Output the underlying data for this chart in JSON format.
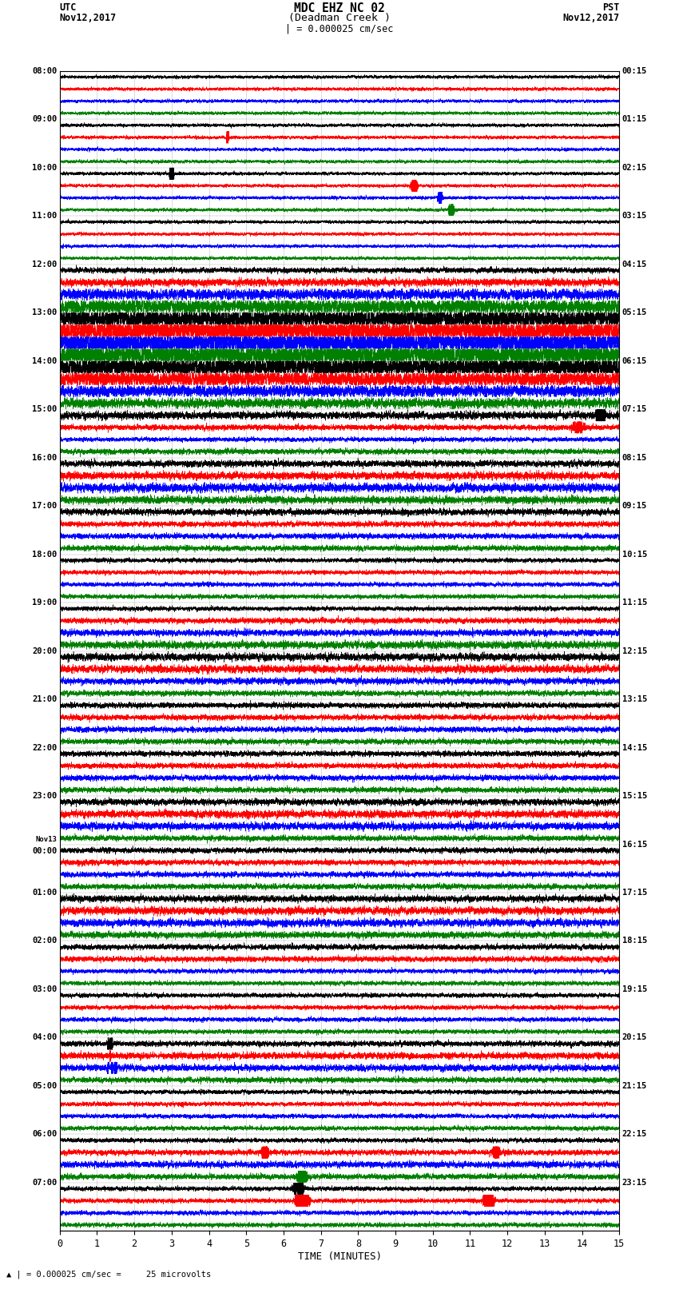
{
  "title_line1": "MDC EHZ NC 02",
  "title_line2": "(Deadman Creek )",
  "scale_label": "| = 0.000025 cm/sec",
  "left_label_top": "UTC",
  "left_label_date": "Nov12,2017",
  "right_label_top": "PST",
  "right_label_date": "Nov12,2017",
  "left_times": [
    "08:00",
    "09:00",
    "10:00",
    "11:00",
    "12:00",
    "13:00",
    "14:00",
    "15:00",
    "16:00",
    "17:00",
    "18:00",
    "19:00",
    "20:00",
    "21:00",
    "22:00",
    "23:00",
    "00:00",
    "01:00",
    "02:00",
    "03:00",
    "04:00",
    "05:00",
    "06:00",
    "07:00"
  ],
  "nov13_label_idx": 16,
  "right_times": [
    "00:15",
    "01:15",
    "02:15",
    "03:15",
    "04:15",
    "05:15",
    "06:15",
    "07:15",
    "08:15",
    "09:15",
    "10:15",
    "11:15",
    "12:15",
    "13:15",
    "14:15",
    "15:15",
    "16:15",
    "17:15",
    "18:15",
    "19:15",
    "20:15",
    "21:15",
    "22:15",
    "23:15"
  ],
  "xlabel": "TIME (MINUTES)",
  "bottom_scale_text": "| = 0.000025 cm/sec =     25 microvolts",
  "num_hour_groups": 24,
  "traces_per_group": 4,
  "trace_colors": [
    "black",
    "red",
    "blue",
    "green"
  ],
  "xlim": [
    0,
    15
  ],
  "xticks": [
    0,
    1,
    2,
    3,
    4,
    5,
    6,
    7,
    8,
    9,
    10,
    11,
    12,
    13,
    14,
    15
  ],
  "background_color": "white",
  "noise_levels": [
    0.06,
    0.06,
    0.06,
    0.06,
    0.06,
    0.06,
    0.06,
    0.06,
    0.06,
    0.06,
    0.06,
    0.06,
    0.06,
    0.06,
    0.06,
    0.06,
    0.1,
    0.14,
    0.2,
    0.28,
    0.36,
    0.42,
    0.46,
    0.46,
    0.38,
    0.3,
    0.22,
    0.18,
    0.14,
    0.1,
    0.08,
    0.1,
    0.12,
    0.14,
    0.16,
    0.14,
    0.12,
    0.1,
    0.1,
    0.1,
    0.08,
    0.08,
    0.08,
    0.08,
    0.08,
    0.1,
    0.12,
    0.14,
    0.14,
    0.14,
    0.12,
    0.1,
    0.1,
    0.1,
    0.1,
    0.1,
    0.1,
    0.1,
    0.1,
    0.1,
    0.12,
    0.14,
    0.14,
    0.1,
    0.1,
    0.1,
    0.1,
    0.1,
    0.12,
    0.14,
    0.14,
    0.12,
    0.1,
    0.1,
    0.08,
    0.08,
    0.08,
    0.08,
    0.08,
    0.08,
    0.1,
    0.12,
    0.12,
    0.1,
    0.08,
    0.08,
    0.08,
    0.08,
    0.08,
    0.1,
    0.12,
    0.1,
    0.08,
    0.08,
    0.08,
    0.08
  ]
}
